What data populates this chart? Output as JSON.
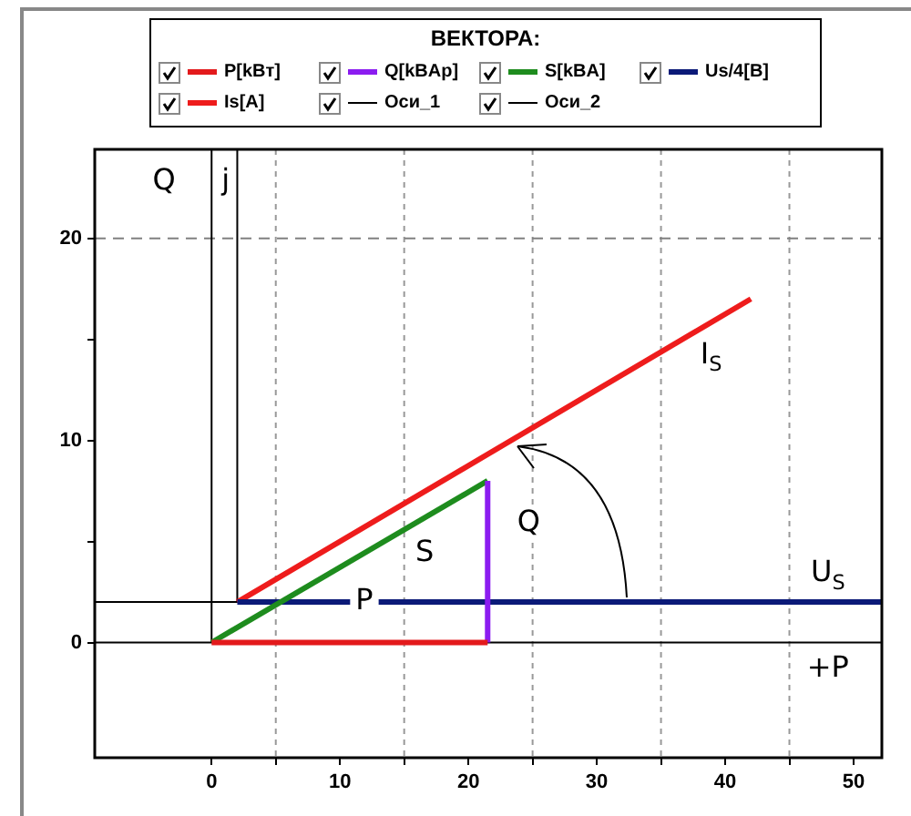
{
  "chart_data": {
    "type": "line",
    "legend_title": "ВЕКТОРА:",
    "legend": "top",
    "grid": "x",
    "marker": "none",
    "line_style": "solid",
    "xlim": [
      -9.1,
      52.2
    ],
    "ylim": [
      -5.7,
      24.4
    ],
    "xticks": [
      0,
      {
        "value": 5,
        "label": null
      },
      10,
      {
        "value": 15,
        "label": null
      },
      20,
      {
        "value": 25,
        "label": null
      },
      30,
      {
        "value": 35,
        "label": null
      },
      40,
      {
        "value": 45,
        "label": null
      },
      50
    ],
    "yticks": [
      0,
      {
        "value": 5,
        "label": null
      },
      10,
      {
        "value": 15,
        "label": null
      },
      20
    ],
    "series": [
      {
        "name": "P[kBт]",
        "color": "#e31a1c",
        "x": [
          0,
          21.5
        ],
        "values": [
          0,
          0
        ]
      },
      {
        "name": "Q[kBAp]",
        "color": "#8b1cf0",
        "x": [
          21.5,
          21.5
        ],
        "values": [
          0,
          8
        ]
      },
      {
        "name": "S[kBA]",
        "color": "#1e8c1e",
        "x": [
          0,
          21.5
        ],
        "values": [
          0,
          8
        ]
      },
      {
        "name": "Us/4[B]",
        "color": "#0b1a78",
        "x": [
          2,
          52.2
        ],
        "values": [
          2,
          2
        ]
      },
      {
        "name": "Is[A]",
        "color": "#ee1c1c",
        "x": [
          2,
          42
        ],
        "values": [
          2,
          17
        ]
      },
      {
        "name": "Оси_1",
        "color": "#000000",
        "x": [
          -9.1,
          52.2,
          null,
          0,
          0
        ],
        "values": [
          0,
          0,
          null,
          0,
          24.4
        ]
      },
      {
        "name": "Оси_2",
        "color": "#000000",
        "x": [
          -9.1,
          2,
          2
        ],
        "values": [
          2,
          2,
          24.4
        ]
      }
    ],
    "ref_lines": [
      {
        "axis": "y",
        "value": 20,
        "color": "#808080",
        "line_style": "dashed"
      }
    ],
    "annotations": [
      {
        "text": "Q",
        "x": -3.7,
        "y": 22.8
      },
      {
        "text": "j",
        "x": 1.1,
        "y": 22.8
      },
      {
        "text": "+P",
        "x": 48,
        "y": -1.3
      },
      {
        "text": "I$_{S}$",
        "x": 38.9,
        "y": 14.2
      },
      {
        "text": "U$_{S}$",
        "x": 48,
        "y": 3.4
      },
      {
        "text": "S",
        "x": 16.6,
        "y": 4.4
      },
      {
        "text": "Q",
        "x": 24.7,
        "y": 5.9
      },
      {
        "text": "P",
        "x": 11.9,
        "y": 2
      }
    ]
  }
}
